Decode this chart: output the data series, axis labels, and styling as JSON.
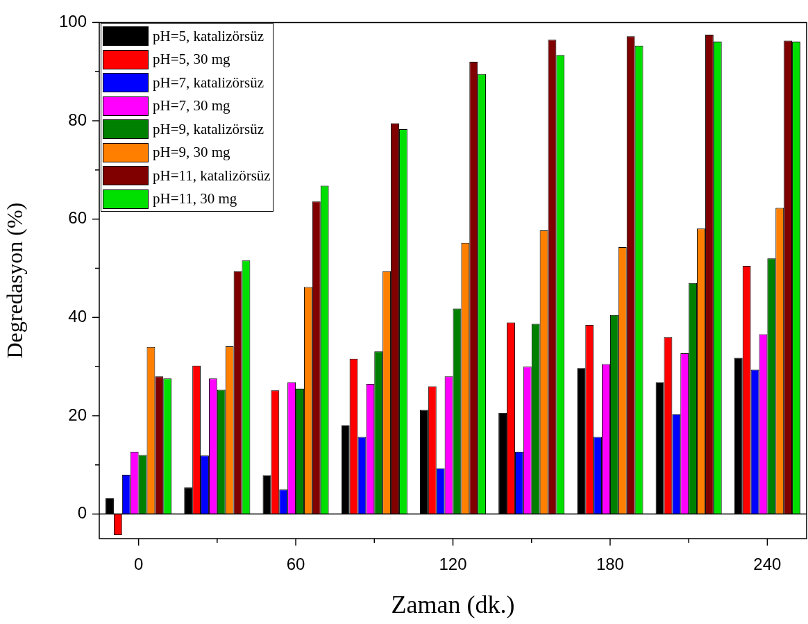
{
  "chart_data": {
    "type": "bar",
    "xlabel": "Zaman (dk.)",
    "ylabel": "Degredasyon (%)",
    "categories": [
      "0",
      null,
      "60",
      null,
      "120",
      null,
      "180",
      null,
      "240"
    ],
    "ylim": [
      -5,
      100
    ],
    "yticks": [
      0,
      {
        "value": 10,
        "label": null
      },
      20,
      {
        "value": 30,
        "label": null
      },
      40,
      {
        "value": 50,
        "label": null
      },
      60,
      {
        "value": 70,
        "label": null
      },
      80,
      {
        "value": 90,
        "label": null
      },
      100
    ],
    "grid": false,
    "legend": "top left",
    "ref_lines": [
      {
        "axis": "y",
        "value": 0,
        "color": "#000000"
      }
    ],
    "series": [
      {
        "name": "pH=5, katalizörsüz",
        "color": "#000000",
        "values": [
          3.2,
          5.4,
          7.9,
          18,
          21.2,
          20.6,
          29.7,
          26.8,
          31.8
        ]
      },
      {
        "name": "pH=5, 30 mg",
        "color": "#ff0000",
        "values": [
          -4.3,
          30.2,
          25.2,
          31.6,
          26,
          39,
          38.5,
          36,
          50.5
        ]
      },
      {
        "name": "pH=7, katalizörsüz",
        "color": "#0000ff",
        "values": [
          8,
          11.9,
          5,
          15.7,
          9.3,
          12.7,
          15.7,
          20.3,
          29.4
        ]
      },
      {
        "name": "pH=7, 30 mg",
        "color": "#ff00ff",
        "values": [
          12.7,
          27.6,
          26.8,
          26.5,
          28,
          30,
          30.5,
          32.7,
          36.6
        ]
      },
      {
        "name": "pH=9, katalizörsüz",
        "color": "#008000",
        "values": [
          12,
          25.3,
          25.5,
          33.1,
          41.8,
          38.7,
          40.5,
          47,
          52
        ]
      },
      {
        "name": "pH=9, 30 mg",
        "color": "#ff8000",
        "values": [
          34,
          34.1,
          46.2,
          49.4,
          55.2,
          57.7,
          54.3,
          58.1,
          62.3
        ]
      },
      {
        "name": "pH=11, katalizörsüz",
        "color": "#800000",
        "values": [
          28,
          49.4,
          63.6,
          79.5,
          92,
          96.5,
          97.2,
          97.5,
          96.3
        ]
      },
      {
        "name": "pH=11, 30 mg",
        "color": "#00e000",
        "values": [
          27.6,
          51.6,
          66.8,
          78.3,
          89.5,
          93.4,
          95.3,
          96.1,
          96.1
        ]
      }
    ]
  }
}
